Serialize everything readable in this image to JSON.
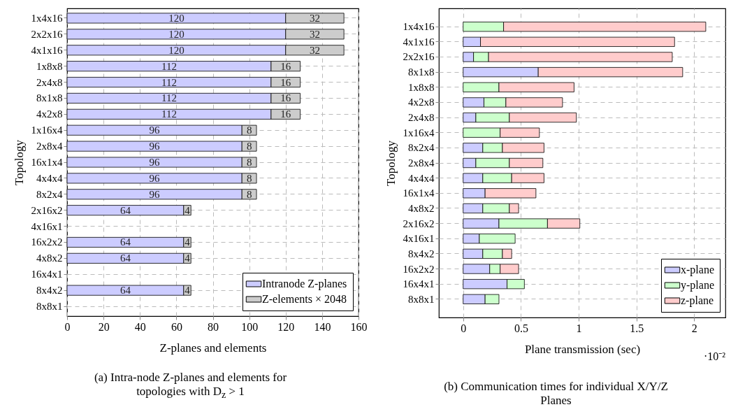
{
  "chart_data": [
    {
      "type": "bar",
      "orientation": "horizontal",
      "stacked": true,
      "title": "(a) Intra-node Z-planes and elements for topologies with D$_{z}$ > 1",
      "xlabel": "Z-planes and elements",
      "ylabel": "Topology",
      "categories": [
        "1x4x16",
        "2x2x16",
        "4x1x16",
        "1x8x8",
        "2x4x8",
        "8x1x8",
        "4x2x8",
        "1x16x4",
        "2x8x4",
        "16x1x4",
        "4x4x4",
        "8x2x4",
        "2x16x2",
        "4x16x1",
        "16x2x2",
        "4x8x2",
        "16x4x1",
        "8x4x2",
        "8x8x1"
      ],
      "series": [
        {
          "name": "Intranode Z-planes",
          "color": "#ccccff",
          "values": [
            120,
            120,
            120,
            112,
            112,
            112,
            112,
            96,
            96,
            96,
            96,
            96,
            64,
            null,
            64,
            64,
            null,
            64,
            null
          ]
        },
        {
          "name": "Z-elements × 2048",
          "color": "#cccccc",
          "values": [
            32,
            32,
            32,
            16,
            16,
            16,
            16,
            8,
            8,
            8,
            8,
            8,
            4,
            null,
            4,
            4,
            null,
            4,
            null
          ]
        }
      ],
      "data_labels": true,
      "xlim": [
        0,
        160
      ],
      "xticks": [
        0,
        20,
        40,
        60,
        80,
        100,
        120,
        140,
        160
      ],
      "grid": true,
      "legend": "bottom right"
    },
    {
      "type": "bar",
      "orientation": "horizontal",
      "stacked": true,
      "title": "(b) Communication times for individual X/Y/Z Planes",
      "xlabel": "Plane transmission (sec)",
      "ylabel": "Topology",
      "annotations": [
        "·10⁻²"
      ],
      "categories": [
        "1x4x16",
        "4x1x16",
        "2x2x16",
        "8x1x8",
        "1x8x8",
        "4x2x8",
        "2x4x8",
        "1x16x4",
        "8x2x4",
        "2x8x4",
        "4x4x4",
        "16x1x4",
        "4x8x2",
        "2x16x2",
        "4x16x1",
        "8x4x2",
        "16x2x2",
        "16x4x1",
        "8x8x1"
      ],
      "series": [
        {
          "name": "x-plane",
          "color": "#ccccff",
          "values": [
            null,
            0.15,
            0.09,
            0.65,
            null,
            0.18,
            0.11,
            null,
            0.17,
            0.11,
            0.17,
            0.19,
            0.17,
            0.31,
            0.14,
            0.17,
            0.23,
            0.38,
            0.19
          ]
        },
        {
          "name": "y-plane",
          "color": "#ccffcc",
          "values": [
            0.35,
            null,
            0.13,
            null,
            0.31,
            0.19,
            0.29,
            0.32,
            0.17,
            0.29,
            0.25,
            null,
            0.23,
            0.42,
            0.31,
            0.17,
            0.09,
            0.15,
            0.12
          ]
        },
        {
          "name": "z-plane",
          "color": "#ffcccc",
          "values": [
            1.75,
            1.68,
            1.59,
            1.25,
            0.65,
            0.49,
            0.58,
            0.34,
            0.36,
            0.29,
            0.28,
            0.44,
            0.08,
            0.28,
            null,
            0.08,
            0.16,
            null,
            null
          ]
        }
      ],
      "xlim": [
        -0.21,
        2.27
      ],
      "xticks": [
        0,
        0.5,
        1,
        1.5,
        2
      ],
      "grid": true,
      "legend": "bottom right"
    }
  ]
}
